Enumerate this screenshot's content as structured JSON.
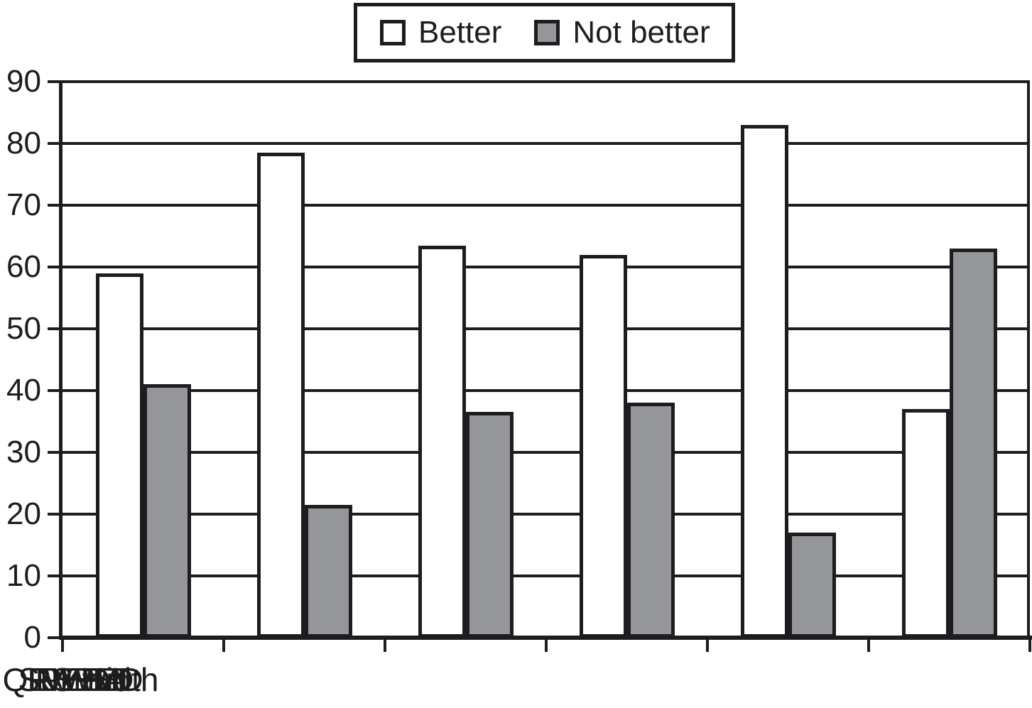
{
  "chart_data": {
    "type": "bar",
    "categories": [
      "EF",
      "NYHA",
      "QRS width",
      "LVPEI",
      "SPWMD",
      "LVEDD"
    ],
    "series": [
      {
        "name": "Better",
        "color": "#ffffff",
        "values": [
          59,
          78.5,
          63.5,
          62,
          83,
          37
        ]
      },
      {
        "name": "Not better",
        "color": "#95969a",
        "values": [
          41,
          21.5,
          36.5,
          38,
          17,
          63
        ]
      }
    ],
    "ylim": [
      0,
      90
    ],
    "ytick_step": 10,
    "yticks": [
      90,
      80,
      70,
      60,
      50,
      40,
      30,
      20,
      10,
      0
    ],
    "grid": true,
    "legend_position": "top-center",
    "line_color": "#1d1d1f"
  }
}
